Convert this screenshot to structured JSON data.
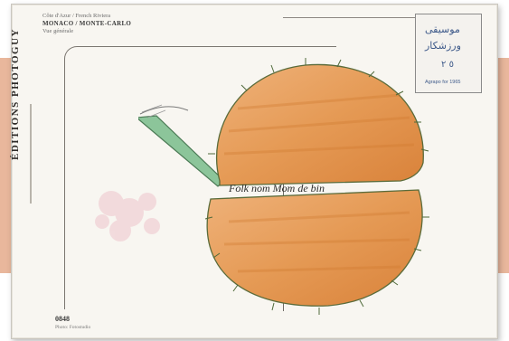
{
  "card": {
    "header": {
      "line1": "Côte d'Azur / French Riviera",
      "line2": "MONACO / MONTE-CARLO",
      "line3": "Vue générale"
    },
    "vertical_title": "ÉDITIONS PHOTOGUY",
    "footer": {
      "code": "0848",
      "credit": "Photo: Fotostudio"
    },
    "stamp": {
      "handwriting_lines": [
        "موسیقی",
        "ورزشکار",
        "٥ ٢"
      ],
      "caption": "Agrapo for 1965"
    },
    "drawing": {
      "subject": "melon",
      "handwritten_text": "Folk nom Mom de bin"
    }
  },
  "colors": {
    "side_band": "#e9b79c",
    "card_bg": "#f8f6f1",
    "melon_orange": "#e59a55",
    "melon_dark": "#d07a2f",
    "stem_green": "#7fb88a",
    "stamp_ink": "#3e5a8a"
  }
}
